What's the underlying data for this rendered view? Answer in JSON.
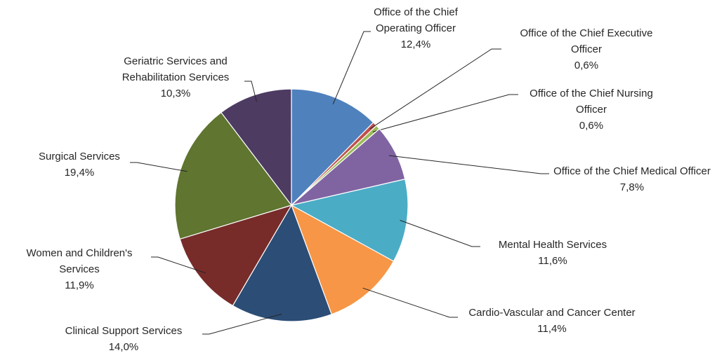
{
  "chart_data": {
    "type": "pie",
    "categories": [
      "Office of the Chief Operating Officer",
      "Office of the Chief Executive Officer",
      "Office of the Chief Nursing Officer",
      "Office of the Chief Medical Officer",
      "Mental Health Services",
      "Cardio-Vascular and Cancer Center",
      "Clinical Support Services",
      "Women and Children's Services",
      "Surgical Services",
      "Geriatric Services and Rehabilitation Services"
    ],
    "values": [
      12.4,
      0.6,
      0.6,
      7.8,
      11.6,
      11.4,
      14.0,
      11.9,
      19.4,
      10.3
    ],
    "value_labels": [
      "12,4%",
      "0,6%",
      "0,6%",
      "7,8%",
      "11,6%",
      "11,4%",
      "14,0%",
      "11,9%",
      "19,4%",
      "10,3%"
    ],
    "colors": [
      "#4f81bd",
      "#c0504d",
      "#9bbb59",
      "#8064a2",
      "#4bacc6",
      "#f79646",
      "#2c4d75",
      "#772c2a",
      "#5f7530",
      "#4d3b62"
    ]
  }
}
